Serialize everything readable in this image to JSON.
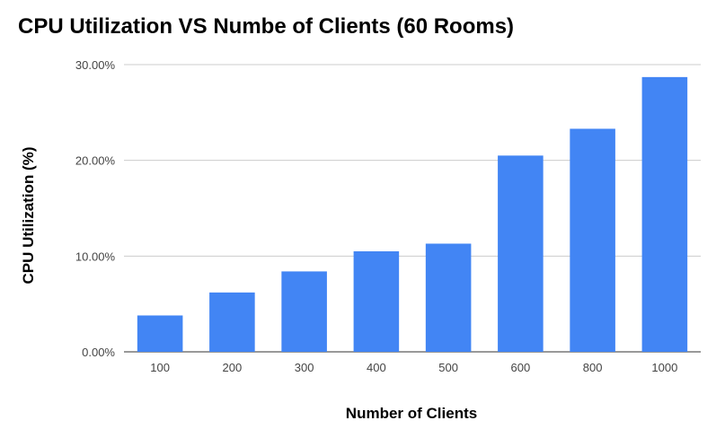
{
  "chart_data": {
    "type": "bar",
    "title": "CPU Utilization VS Numbe of Clients (60 Rooms)",
    "xlabel": "Number of Clients",
    "ylabel": "CPU Utilization (%)",
    "categories": [
      "100",
      "200",
      "300",
      "400",
      "500",
      "600",
      "800",
      "1000"
    ],
    "values": [
      3.8,
      6.2,
      8.4,
      10.5,
      11.3,
      20.5,
      23.3,
      28.7
    ],
    "ylim": [
      0,
      30
    ],
    "yticks": [
      0,
      10,
      20,
      30
    ],
    "ytick_labels": [
      "0.00%",
      "10.00%",
      "20.00%",
      "30.00%"
    ],
    "grid": true,
    "legend": "none",
    "bar_color": "#4285F4",
    "grid_color": "#cccccc"
  }
}
